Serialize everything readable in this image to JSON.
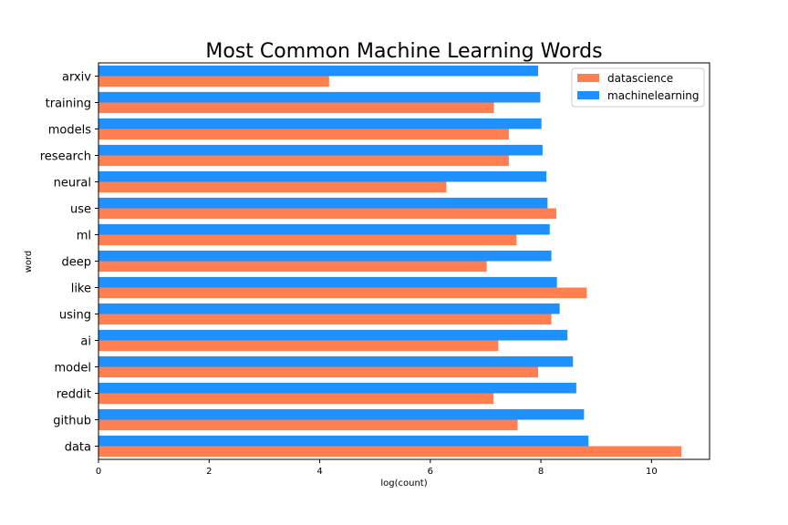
{
  "chart_data": {
    "type": "bar",
    "orientation": "horizontal",
    "title": "Most Common Machine Learning Words",
    "xlabel": "log(count)",
    "ylabel": "word",
    "xlim": [
      0,
      11.05
    ],
    "xticks": [
      0,
      2,
      4,
      6,
      8,
      10
    ],
    "grid": false,
    "legend_position": "top-right",
    "categories": [
      "data",
      "github",
      "reddit",
      "model",
      "ai",
      "using",
      "like",
      "deep",
      "ml",
      "use",
      "neural",
      "research",
      "models",
      "training",
      "arxiv"
    ],
    "series": [
      {
        "name": "datascience",
        "color": "#ff7f50",
        "values": [
          10.54,
          7.58,
          7.14,
          7.95,
          7.23,
          8.19,
          8.83,
          7.02,
          7.56,
          8.28,
          6.29,
          7.42,
          7.42,
          7.15,
          4.17
        ]
      },
      {
        "name": "machinelearning",
        "color": "#1e90ff",
        "values": [
          8.86,
          8.78,
          8.64,
          8.58,
          8.48,
          8.34,
          8.29,
          8.19,
          8.16,
          8.12,
          8.1,
          8.03,
          8.01,
          7.99,
          7.95
        ]
      }
    ]
  }
}
